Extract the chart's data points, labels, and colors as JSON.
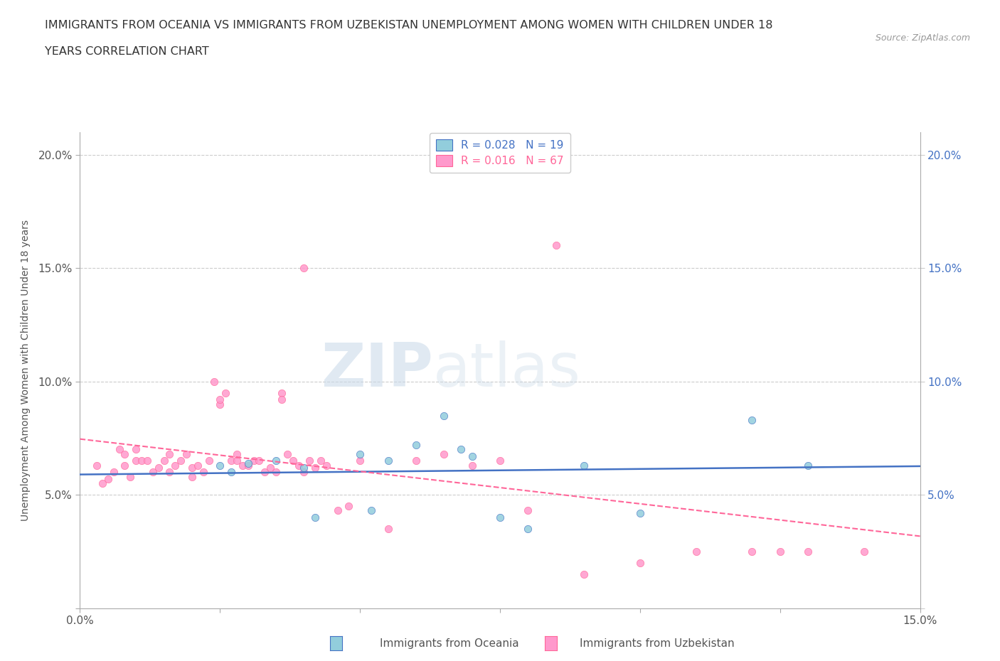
{
  "title_line1": "IMMIGRANTS FROM OCEANIA VS IMMIGRANTS FROM UZBEKISTAN UNEMPLOYMENT AMONG WOMEN WITH CHILDREN UNDER 18",
  "title_line2": "YEARS CORRELATION CHART",
  "source": "Source: ZipAtlas.com",
  "ylabel": "Unemployment Among Women with Children Under 18 years",
  "xlim": [
    0.0,
    0.15
  ],
  "ylim": [
    0.0,
    0.21
  ],
  "xticks": [
    0.0,
    0.025,
    0.05,
    0.075,
    0.1,
    0.125,
    0.15
  ],
  "xtick_labels": [
    "0.0%",
    "",
    "",
    "",
    "",
    "",
    "15.0%"
  ],
  "yticks": [
    0.0,
    0.05,
    0.1,
    0.15,
    0.2
  ],
  "ytick_labels_left": [
    "",
    "5.0%",
    "10.0%",
    "15.0%",
    "20.0%"
  ],
  "ytick_labels_right": [
    "",
    "5.0%",
    "10.0%",
    "15.0%",
    "20.0%"
  ],
  "legend_r_oceania": "R = 0.028",
  "legend_n_oceania": "N = 19",
  "legend_r_uzbekistan": "R = 0.016",
  "legend_n_uzbekistan": "N = 67",
  "color_oceania": "#92CDDC",
  "color_uzbekistan": "#FF99CC",
  "color_oceania_line": "#4472C4",
  "color_uzbekistan_line": "#FF6699",
  "watermark_zip": "ZIP",
  "watermark_atlas": "atlas",
  "oceania_x": [
    0.025,
    0.027,
    0.03,
    0.035,
    0.04,
    0.042,
    0.05,
    0.052,
    0.055,
    0.06,
    0.065,
    0.068,
    0.07,
    0.075,
    0.08,
    0.09,
    0.1,
    0.12,
    0.13
  ],
  "oceania_y": [
    0.063,
    0.06,
    0.064,
    0.065,
    0.062,
    0.04,
    0.068,
    0.043,
    0.065,
    0.072,
    0.085,
    0.07,
    0.067,
    0.04,
    0.035,
    0.063,
    0.042,
    0.083,
    0.063
  ],
  "uzbekistan_x": [
    0.003,
    0.004,
    0.005,
    0.006,
    0.007,
    0.008,
    0.008,
    0.009,
    0.01,
    0.01,
    0.011,
    0.012,
    0.013,
    0.014,
    0.015,
    0.016,
    0.016,
    0.017,
    0.018,
    0.019,
    0.02,
    0.02,
    0.021,
    0.022,
    0.023,
    0.024,
    0.025,
    0.025,
    0.026,
    0.027,
    0.028,
    0.028,
    0.029,
    0.03,
    0.031,
    0.032,
    0.033,
    0.034,
    0.035,
    0.036,
    0.036,
    0.037,
    0.038,
    0.039,
    0.04,
    0.041,
    0.042,
    0.043,
    0.044,
    0.046,
    0.048,
    0.05,
    0.055,
    0.06,
    0.065,
    0.07,
    0.075,
    0.08,
    0.085,
    0.09,
    0.1,
    0.11,
    0.12,
    0.125,
    0.13,
    0.14,
    0.04
  ],
  "uzbekistan_y": [
    0.063,
    0.055,
    0.057,
    0.06,
    0.07,
    0.068,
    0.063,
    0.058,
    0.065,
    0.07,
    0.065,
    0.065,
    0.06,
    0.062,
    0.065,
    0.068,
    0.06,
    0.063,
    0.065,
    0.068,
    0.062,
    0.058,
    0.063,
    0.06,
    0.065,
    0.1,
    0.09,
    0.092,
    0.095,
    0.065,
    0.065,
    0.068,
    0.063,
    0.063,
    0.065,
    0.065,
    0.06,
    0.062,
    0.06,
    0.095,
    0.092,
    0.068,
    0.065,
    0.063,
    0.06,
    0.065,
    0.062,
    0.065,
    0.063,
    0.043,
    0.045,
    0.065,
    0.035,
    0.065,
    0.068,
    0.063,
    0.065,
    0.043,
    0.16,
    0.015,
    0.02,
    0.025,
    0.025,
    0.025,
    0.025,
    0.025,
    0.15
  ]
}
